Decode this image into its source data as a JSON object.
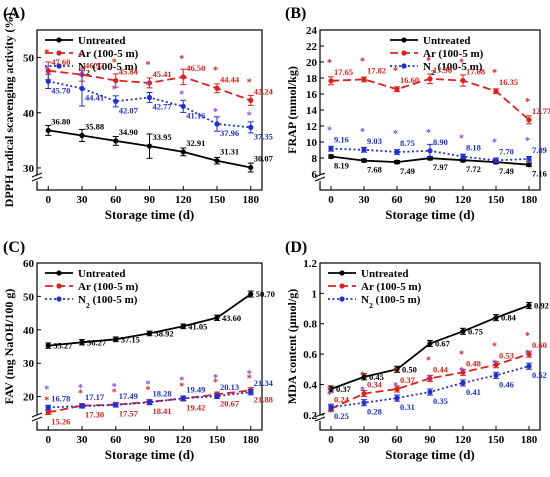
{
  "figure": {
    "colors": {
      "untreated": "#000000",
      "ar": "#e0201b",
      "n2": "#1f2fd6",
      "star_n2": "#8a3ffc"
    }
  },
  "chart_data": [
    {
      "panel": "(A)",
      "type": "line",
      "xlabel": "Storage time (d)",
      "ylabel": "DPPH radical scavenging activity (%)",
      "x": [
        0,
        30,
        60,
        90,
        120,
        150,
        180
      ],
      "xlim": [
        -10,
        190
      ],
      "ylim": [
        26,
        55
      ],
      "yticks": [
        30,
        40,
        50
      ],
      "axis_break": true,
      "legend_position": "top-left",
      "series": [
        {
          "name": "Untreated",
          "color": "#000000",
          "dash": "solid",
          "values": [
            36.8,
            35.88,
            34.9,
            33.95,
            32.91,
            31.31,
            30.07
          ],
          "errors": [
            0.9,
            1.1,
            0.8,
            2.2,
            0.7,
            0.6,
            0.8
          ],
          "labels": [
            "36.80",
            "35.88",
            "34.90",
            "33.95",
            "32.91",
            "31.31",
            "30.07"
          ]
        },
        {
          "name": "Ar (100-5 m)",
          "color": "#e0201b",
          "dash": "long",
          "values": [
            47.6,
            46.92,
            45.84,
            45.41,
            46.5,
            44.44,
            42.24
          ],
          "errors": [
            1.6,
            1.2,
            1.2,
            0.9,
            1.4,
            0.8,
            0.9
          ],
          "labels": [
            "47.60",
            "46.92",
            "45.84",
            "45.41",
            "46.50",
            "44.44",
            "42.24"
          ]
        },
        {
          "name": "N$2$ (100-5 m)",
          "color": "#1f2fd6",
          "dash": "dot",
          "values": [
            45.7,
            44.41,
            42.07,
            42.77,
            41.16,
            37.96,
            37.35
          ],
          "errors": [
            1.3,
            3.2,
            1.0,
            0.9,
            1.1,
            1.3,
            1.0
          ],
          "labels": [
            "45.70",
            "44.41",
            "42.07",
            "42.77",
            "41.16",
            "37.96",
            "37.35"
          ]
        }
      ]
    },
    {
      "panel": "(B)",
      "type": "line",
      "xlabel": "Storage time (d)",
      "ylabel": "FRAP (mmol/kg)",
      "x": [
        0,
        30,
        60,
        90,
        120,
        150,
        180
      ],
      "xlim": [
        -10,
        190
      ],
      "ylim": [
        4,
        24
      ],
      "yticks": [
        6,
        8,
        10,
        12,
        14,
        16,
        18,
        20,
        22,
        24
      ],
      "axis_break": true,
      "legend_position": "top-right",
      "series": [
        {
          "name": "Untreated",
          "color": "#000000",
          "dash": "solid",
          "values": [
            8.19,
            7.68,
            7.49,
            7.97,
            7.72,
            7.49,
            7.16
          ],
          "errors": [
            0.2,
            0.2,
            0.2,
            0.2,
            0.2,
            0.2,
            0.2
          ],
          "labels": [
            "8.19",
            "7.68",
            "7.49",
            "7.97",
            "7.72",
            "7.49",
            "7.16"
          ]
        },
        {
          "name": "Ar (100-5 m)",
          "color": "#e0201b",
          "dash": "long",
          "values": [
            17.65,
            17.82,
            16.6,
            17.9,
            17.68,
            16.35,
            12.77
          ],
          "errors": [
            0.5,
            0.3,
            0.3,
            0.6,
            0.7,
            0.3,
            0.5
          ],
          "labels": [
            "17.65",
            "17.82",
            "16.60",
            "17.90",
            "17.68",
            "16.35",
            "12.77"
          ]
        },
        {
          "name": "N$2$ (100-5 m)",
          "color": "#1f2fd6",
          "dash": "dot",
          "values": [
            9.16,
            9.03,
            8.75,
            8.9,
            8.18,
            7.7,
            7.89
          ],
          "errors": [
            0.3,
            0.3,
            0.3,
            0.8,
            0.3,
            0.3,
            0.3
          ],
          "labels": [
            "9.16",
            "9.03",
            "8.75",
            "8.90",
            "8.18",
            "7.70",
            "7.89"
          ]
        }
      ]
    },
    {
      "panel": "(C)",
      "type": "line",
      "xlabel": "Storage time (d)",
      "ylabel": "FAV (mg NaOH/100 g)",
      "x": [
        0,
        30,
        60,
        90,
        120,
        150,
        180
      ],
      "xlim": [
        -10,
        190
      ],
      "ylim": [
        10,
        60
      ],
      "yticks": [
        20,
        30,
        40,
        50,
        60
      ],
      "axis_break": true,
      "legend_position": "top-left",
      "series": [
        {
          "name": "Untreated",
          "color": "#000000",
          "dash": "solid",
          "values": [
            35.27,
            36.27,
            37.15,
            38.92,
            41.05,
            43.6,
            50.7
          ],
          "errors": [
            0.8,
            0.8,
            0.7,
            0.7,
            0.7,
            0.8,
            0.9
          ],
          "labels": [
            "35.27",
            "36.27",
            "37.15",
            "38.92",
            "41.05",
            "43.60",
            "50.70"
          ]
        },
        {
          "name": "Ar (100-5 m)",
          "color": "#e0201b",
          "dash": "long",
          "values": [
            15.26,
            17.3,
            17.57,
            18.41,
            19.42,
            20.67,
            21.88
          ],
          "errors": [
            0.6,
            0.6,
            0.7,
            0.7,
            0.7,
            0.7,
            0.8
          ],
          "labels": [
            "15.26",
            "17.30",
            "17.57",
            "18.41",
            "19.42",
            "20.67",
            "21.88"
          ]
        },
        {
          "name": "N$2$ (100-5 m)",
          "color": "#1f2fd6",
          "dash": "dot",
          "values": [
            16.78,
            17.17,
            17.49,
            18.28,
            19.49,
            20.13,
            21.34
          ],
          "errors": [
            0.6,
            0.6,
            0.6,
            0.7,
            0.7,
            0.7,
            0.8
          ],
          "labels": [
            "16.78",
            "17.17",
            "17.49",
            "18.28",
            "19.49",
            "20.13",
            "21.34"
          ]
        }
      ]
    },
    {
      "panel": "(D)",
      "type": "line",
      "xlabel": "Storage time (d)",
      "ylabel": "MDA content (μmol/g)",
      "x": [
        0,
        30,
        60,
        90,
        120,
        150,
        180
      ],
      "xlim": [
        -10,
        190
      ],
      "ylim": [
        0.1,
        1.2
      ],
      "yticks": [
        0.2,
        0.4,
        0.6,
        0.8,
        1.0,
        1.2
      ],
      "axis_break": true,
      "legend_position": "top-left",
      "series": [
        {
          "name": "Untreated",
          "color": "#000000",
          "dash": "solid",
          "values": [
            0.37,
            0.45,
            0.5,
            0.67,
            0.75,
            0.84,
            0.92
          ],
          "errors": [
            0.02,
            0.02,
            0.02,
            0.02,
            0.02,
            0.02,
            0.02
          ],
          "labels": [
            "0.37",
            "0.45",
            "0.50",
            "0.67",
            "0.75",
            "0.84",
            "0.92"
          ]
        },
        {
          "name": "Ar (100-5 m)",
          "color": "#e0201b",
          "dash": "long",
          "values": [
            0.24,
            0.34,
            0.37,
            0.44,
            0.48,
            0.53,
            0.6
          ],
          "errors": [
            0.02,
            0.02,
            0.02,
            0.02,
            0.02,
            0.02,
            0.02
          ],
          "labels": [
            "0.24",
            "0.34",
            "0.37",
            "0.44",
            "0.48",
            "0.53",
            "0.60"
          ]
        },
        {
          "name": "N$2$ (100-5 m)",
          "color": "#1f2fd6",
          "dash": "dot",
          "values": [
            0.25,
            0.28,
            0.31,
            0.35,
            0.41,
            0.46,
            0.52
          ],
          "errors": [
            0.02,
            0.02,
            0.02,
            0.02,
            0.02,
            0.02,
            0.02
          ],
          "labels": [
            "0.25",
            "0.28",
            "0.31",
            "0.35",
            "0.41",
            "0.46",
            "0.52"
          ]
        }
      ]
    }
  ]
}
